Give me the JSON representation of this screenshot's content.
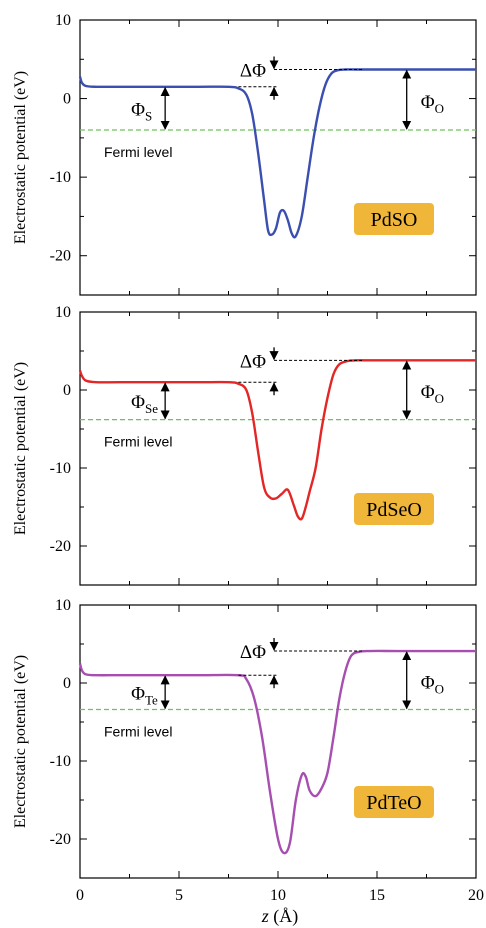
{
  "figure": {
    "xlabel_var": "z",
    "xlabel_unit": " (Å)",
    "colors": {
      "fermi": "#6ec25a",
      "badge": "#f0b63a",
      "arrow": "#000000"
    }
  },
  "chart_data": [
    {
      "type": "line",
      "material": "PdSO",
      "xlim": [
        0,
        20
      ],
      "ylim": [
        -25,
        10
      ],
      "yticks": [
        10,
        0,
        -10,
        -20
      ],
      "xticks": [
        0,
        5,
        10,
        15,
        20
      ],
      "ylabel": "Electrostatic potential (eV)",
      "series": [
        {
          "color": "#3a4fb0",
          "x": [
            0,
            0.1,
            0.3,
            0.8,
            2,
            4,
            6,
            7.5,
            8,
            8.4,
            8.7,
            9.0,
            9.3,
            9.5,
            9.7,
            9.9,
            10.1,
            10.3,
            10.5,
            10.7,
            10.9,
            11.2,
            11.5,
            11.8,
            12.1,
            12.4,
            12.7,
            13.0,
            13.4,
            14,
            16,
            18,
            20
          ],
          "y": [
            2.8,
            2.0,
            1.6,
            1.5,
            1.5,
            1.5,
            1.5,
            1.5,
            1.3,
            0.5,
            -2,
            -7,
            -13,
            -16.8,
            -17.3,
            -16.5,
            -14.5,
            -14.3,
            -15.5,
            -17.2,
            -17.5,
            -15,
            -10,
            -5,
            -1,
            1.8,
            3.2,
            3.6,
            3.7,
            3.7,
            3.7,
            3.7,
            3.7
          ]
        }
      ],
      "fermi_level": -4.0,
      "fermi_label": "Fermi level",
      "phi_left_symbol": "Φ",
      "phi_left_sub": "S",
      "phi_right_symbol": "Φ",
      "phi_right_sub": "O",
      "delta_phi": "ΔΦ",
      "left_vacuum": 1.5,
      "right_vacuum": 3.7
    },
    {
      "type": "line",
      "material": "PdSeO",
      "xlim": [
        0,
        20
      ],
      "ylim": [
        -25,
        10
      ],
      "yticks": [
        10,
        0,
        -10,
        -20
      ],
      "xticks": [
        0,
        5,
        10,
        15,
        20
      ],
      "ylabel": "Electrostatic potential (eV)",
      "series": [
        {
          "color": "#e32626",
          "x": [
            0,
            0.1,
            0.3,
            0.8,
            2,
            4,
            6,
            7.5,
            8,
            8.4,
            8.7,
            9.0,
            9.3,
            9.6,
            9.9,
            10.2,
            10.5,
            10.8,
            11.0,
            11.2,
            11.4,
            11.6,
            11.9,
            12.2,
            12.5,
            12.8,
            13.1,
            13.5,
            14,
            16,
            18,
            20
          ],
          "y": [
            2.5,
            1.8,
            1.2,
            1.0,
            1.0,
            1.0,
            1.0,
            1.0,
            0.8,
            0,
            -3,
            -8,
            -12.5,
            -13.8,
            -13.9,
            -13.3,
            -12.8,
            -14.8,
            -16.2,
            -16.5,
            -15,
            -13,
            -10,
            -5,
            -1,
            2,
            3.3,
            3.7,
            3.8,
            3.8,
            3.8,
            3.8
          ]
        }
      ],
      "fermi_level": -3.8,
      "fermi_label": "Fermi level",
      "phi_left_symbol": "Φ",
      "phi_left_sub": "Se",
      "phi_right_symbol": "Φ",
      "phi_right_sub": "O",
      "delta_phi": "ΔΦ",
      "left_vacuum": 1.0,
      "right_vacuum": 3.8
    },
    {
      "type": "line",
      "material": "PdTeO",
      "xlim": [
        0,
        20
      ],
      "ylim": [
        -25,
        10
      ],
      "yticks": [
        10,
        0,
        -10,
        -20
      ],
      "xticks": [
        0,
        5,
        10,
        15,
        20
      ],
      "ylabel": "Electrostatic potential (eV)",
      "series": [
        {
          "color": "#a64fb0",
          "x": [
            0,
            0.1,
            0.3,
            0.8,
            2,
            4,
            6,
            8,
            8.4,
            8.8,
            9.2,
            9.6,
            10.0,
            10.3,
            10.6,
            10.9,
            11.2,
            11.4,
            11.6,
            11.9,
            12.2,
            12.5,
            12.8,
            13.1,
            13.4,
            13.7,
            14.1,
            14.6,
            16,
            18,
            20
          ],
          "y": [
            2.5,
            1.6,
            1.1,
            1.0,
            1.0,
            1.0,
            1.0,
            1.0,
            0.5,
            -2,
            -7,
            -14,
            -20,
            -21.8,
            -20.5,
            -15,
            -11.8,
            -12,
            -13.8,
            -14.5,
            -13.5,
            -11.5,
            -7,
            -2,
            1.5,
            3.5,
            4.0,
            4.1,
            4.1,
            4.1,
            4.1
          ]
        }
      ],
      "fermi_level": -3.4,
      "fermi_label": "Fermi level",
      "phi_left_symbol": "Φ",
      "phi_left_sub": "Te",
      "phi_right_symbol": "Φ",
      "phi_right_sub": "O",
      "delta_phi": "ΔΦ",
      "left_vacuum": 1.0,
      "right_vacuum": 4.1
    }
  ]
}
